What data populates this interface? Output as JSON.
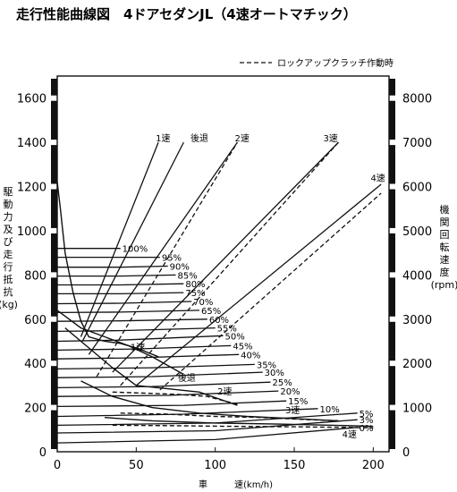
{
  "chart_data": {
    "type": "line",
    "title": "走行性能曲線図　4ドアセダンJL（4速オートマチック）",
    "xlabel": "車　　　速(km/h)",
    "ylabel_left": [
      "駆",
      "動",
      "力",
      "及",
      "び",
      "走",
      "行",
      "抵",
      "抗",
      "(kg)"
    ],
    "ylabel_right": [
      "機",
      "関",
      "回",
      "転",
      "速",
      "度",
      "(rpm)"
    ],
    "legend": "ロックアップクラッチ作動時",
    "legend_placement": "top-right",
    "xlim": [
      0,
      210
    ],
    "ylim": [
      0,
      1700
    ],
    "y2lim": [
      0,
      8500
    ],
    "xticks": [
      "0",
      "50",
      "100",
      "150",
      "200"
    ],
    "yticks": [
      "0",
      "200",
      "400",
      "600",
      "800",
      "1000",
      "1200",
      "1400",
      "1600"
    ],
    "y2ticks": [
      "0",
      "1000",
      "2000",
      "3000",
      "4000",
      "5000",
      "6000",
      "7000",
      "8000"
    ],
    "rpm_lines": [
      {
        "name": "1速",
        "x": [
          15,
          64
        ],
        "rpm": [
          2600,
          7000
        ],
        "style": "solid"
      },
      {
        "name": "後退",
        "x": [
          16,
          80
        ],
        "rpm": [
          2500,
          7000
        ],
        "style": "solid"
      },
      {
        "name": "2速",
        "x": [
          20,
          114
        ],
        "rpm": [
          2200,
          7000
        ],
        "style": "solid"
      },
      {
        "name": "2速",
        "x": [
          25,
          114
        ],
        "rpm": [
          1700,
          7000
        ],
        "style": "dashed"
      },
      {
        "name": "3速",
        "x": [
          35,
          178
        ],
        "rpm": [
          1800,
          7000
        ],
        "style": "solid"
      },
      {
        "name": "3速",
        "x": [
          40,
          178
        ],
        "rpm": [
          1500,
          7000
        ],
        "style": "dashed"
      },
      {
        "name": "4速",
        "x": [
          50,
          205
        ],
        "rpm": [
          1500,
          6050
        ],
        "style": "solid"
      },
      {
        "name": "4速",
        "x": [
          65,
          205
        ],
        "rpm": [
          1400,
          5850
        ],
        "style": "dashed"
      }
    ],
    "resistance_curves": [
      {
        "name": "100%",
        "x": [
          0,
          40
        ],
        "y": [
          920,
          920
        ]
      },
      {
        "name": "95%",
        "x": [
          0,
          35,
          65
        ],
        "y": [
          880,
          880,
          880
        ]
      },
      {
        "name": "90%",
        "x": [
          0,
          40,
          70
        ],
        "y": [
          835,
          835,
          840
        ]
      },
      {
        "name": "85%",
        "x": [
          0,
          40,
          75
        ],
        "y": [
          795,
          795,
          800
        ]
      },
      {
        "name": "80%",
        "x": [
          0,
          40,
          80
        ],
        "y": [
          755,
          755,
          760
        ]
      },
      {
        "name": "75%",
        "x": [
          0,
          40,
          80
        ],
        "y": [
          715,
          715,
          720
        ]
      },
      {
        "name": "70%",
        "x": [
          0,
          40,
          85
        ],
        "y": [
          670,
          672,
          680
        ]
      },
      {
        "name": "65%",
        "x": [
          0,
          40,
          90
        ],
        "y": [
          630,
          632,
          640
        ]
      },
      {
        "name": "60%",
        "x": [
          0,
          40,
          95
        ],
        "y": [
          590,
          592,
          600
        ]
      },
      {
        "name": "55%",
        "x": [
          0,
          40,
          100
        ],
        "y": [
          545,
          548,
          560
        ]
      },
      {
        "name": "50%",
        "x": [
          0,
          40,
          105
        ],
        "y": [
          500,
          505,
          525
        ]
      },
      {
        "name": "45%",
        "x": [
          0,
          50,
          110
        ],
        "y": [
          460,
          465,
          480
        ]
      },
      {
        "name": "40%",
        "x": [
          0,
          50,
          115
        ],
        "y": [
          420,
          425,
          440
        ]
      },
      {
        "name": "35%",
        "x": [
          0,
          60,
          125
        ],
        "y": [
          375,
          380,
          395
        ]
      },
      {
        "name": "30%",
        "x": [
          0,
          60,
          130
        ],
        "y": [
          335,
          340,
          360
        ]
      },
      {
        "name": "25%",
        "x": [
          0,
          60,
          135
        ],
        "y": [
          290,
          295,
          315
        ]
      },
      {
        "name": "20%",
        "x": [
          0,
          70,
          140
        ],
        "y": [
          250,
          255,
          275
        ]
      },
      {
        "name": "15%",
        "x": [
          0,
          80,
          145
        ],
        "y": [
          205,
          210,
          230
        ]
      },
      {
        "name": "10%",
        "x": [
          0,
          80,
          165
        ],
        "y": [
          160,
          170,
          195
        ]
      },
      {
        "name": "5%",
        "x": [
          0,
          100,
          190
        ],
        "y": [
          120,
          130,
          175
        ]
      },
      {
        "name": "3%",
        "x": [
          0,
          100,
          190
        ],
        "y": [
          85,
          95,
          145
        ]
      },
      {
        "name": "0%",
        "x": [
          0,
          100,
          190
        ],
        "y": [
          40,
          55,
          110
        ]
      }
    ],
    "tractive_curves": [
      {
        "name": "1速",
        "style": "solid",
        "x": [
          0,
          2,
          5,
          10,
          15,
          20,
          30,
          40,
          50,
          64
        ],
        "y": [
          1220,
          1100,
          900,
          720,
          590,
          520,
          500,
          490,
          470,
          430
        ]
      },
      {
        "name": "後退",
        "style": "solid",
        "x": [
          0,
          15,
          30,
          45,
          60,
          80
        ],
        "y": [
          640,
          560,
          520,
          480,
          430,
          350
        ]
      },
      {
        "name": "2速",
        "style": "solid",
        "x": [
          5,
          20,
          35,
          50,
          70,
          90,
          114
        ],
        "y": [
          560,
          470,
          380,
          300,
          285,
          270,
          210
        ]
      },
      {
        "name": "2速",
        "style": "dashed",
        "x": [
          35,
          55,
          75,
          95,
          114
        ],
        "y": [
          270,
          265,
          260,
          250,
          215
        ]
      },
      {
        "name": "3速",
        "style": "solid",
        "x": [
          15,
          35,
          60,
          90,
          120,
          150,
          178
        ],
        "y": [
          320,
          250,
          200,
          175,
          160,
          150,
          140
        ]
      },
      {
        "name": "3速",
        "style": "dashed",
        "x": [
          40,
          70,
          100,
          130,
          160,
          178
        ],
        "y": [
          175,
          170,
          160,
          155,
          145,
          140
        ]
      },
      {
        "name": "4速",
        "style": "solid",
        "x": [
          30,
          60,
          100,
          140,
          175,
          200
        ],
        "y": [
          155,
          140,
          130,
          125,
          120,
          115
        ]
      },
      {
        "name": "4速",
        "style": "dashed",
        "x": [
          35,
          70,
          110,
          150,
          185,
          200
        ],
        "y": [
          120,
          118,
          115,
          113,
          110,
          108
        ]
      }
    ],
    "annotations": [
      {
        "text": "1速",
        "x": 67,
        "y": 1405
      },
      {
        "text": "後退",
        "x": 90,
        "y": 1405
      },
      {
        "text": "2速",
        "x": 117,
        "y": 1405
      },
      {
        "text": "3速",
        "x": 173,
        "y": 1405
      },
      {
        "text": "4速",
        "x": 203,
        "y": 1225
      },
      {
        "text": "1速",
        "x": 51,
        "y": 460
      },
      {
        "text": "後退",
        "x": 82,
        "y": 320
      },
      {
        "text": "2速",
        "x": 106,
        "y": 260
      },
      {
        "text": "3速",
        "x": 149,
        "y": 175
      },
      {
        "text": "4速",
        "x": 185,
        "y": 65
      }
    ]
  }
}
